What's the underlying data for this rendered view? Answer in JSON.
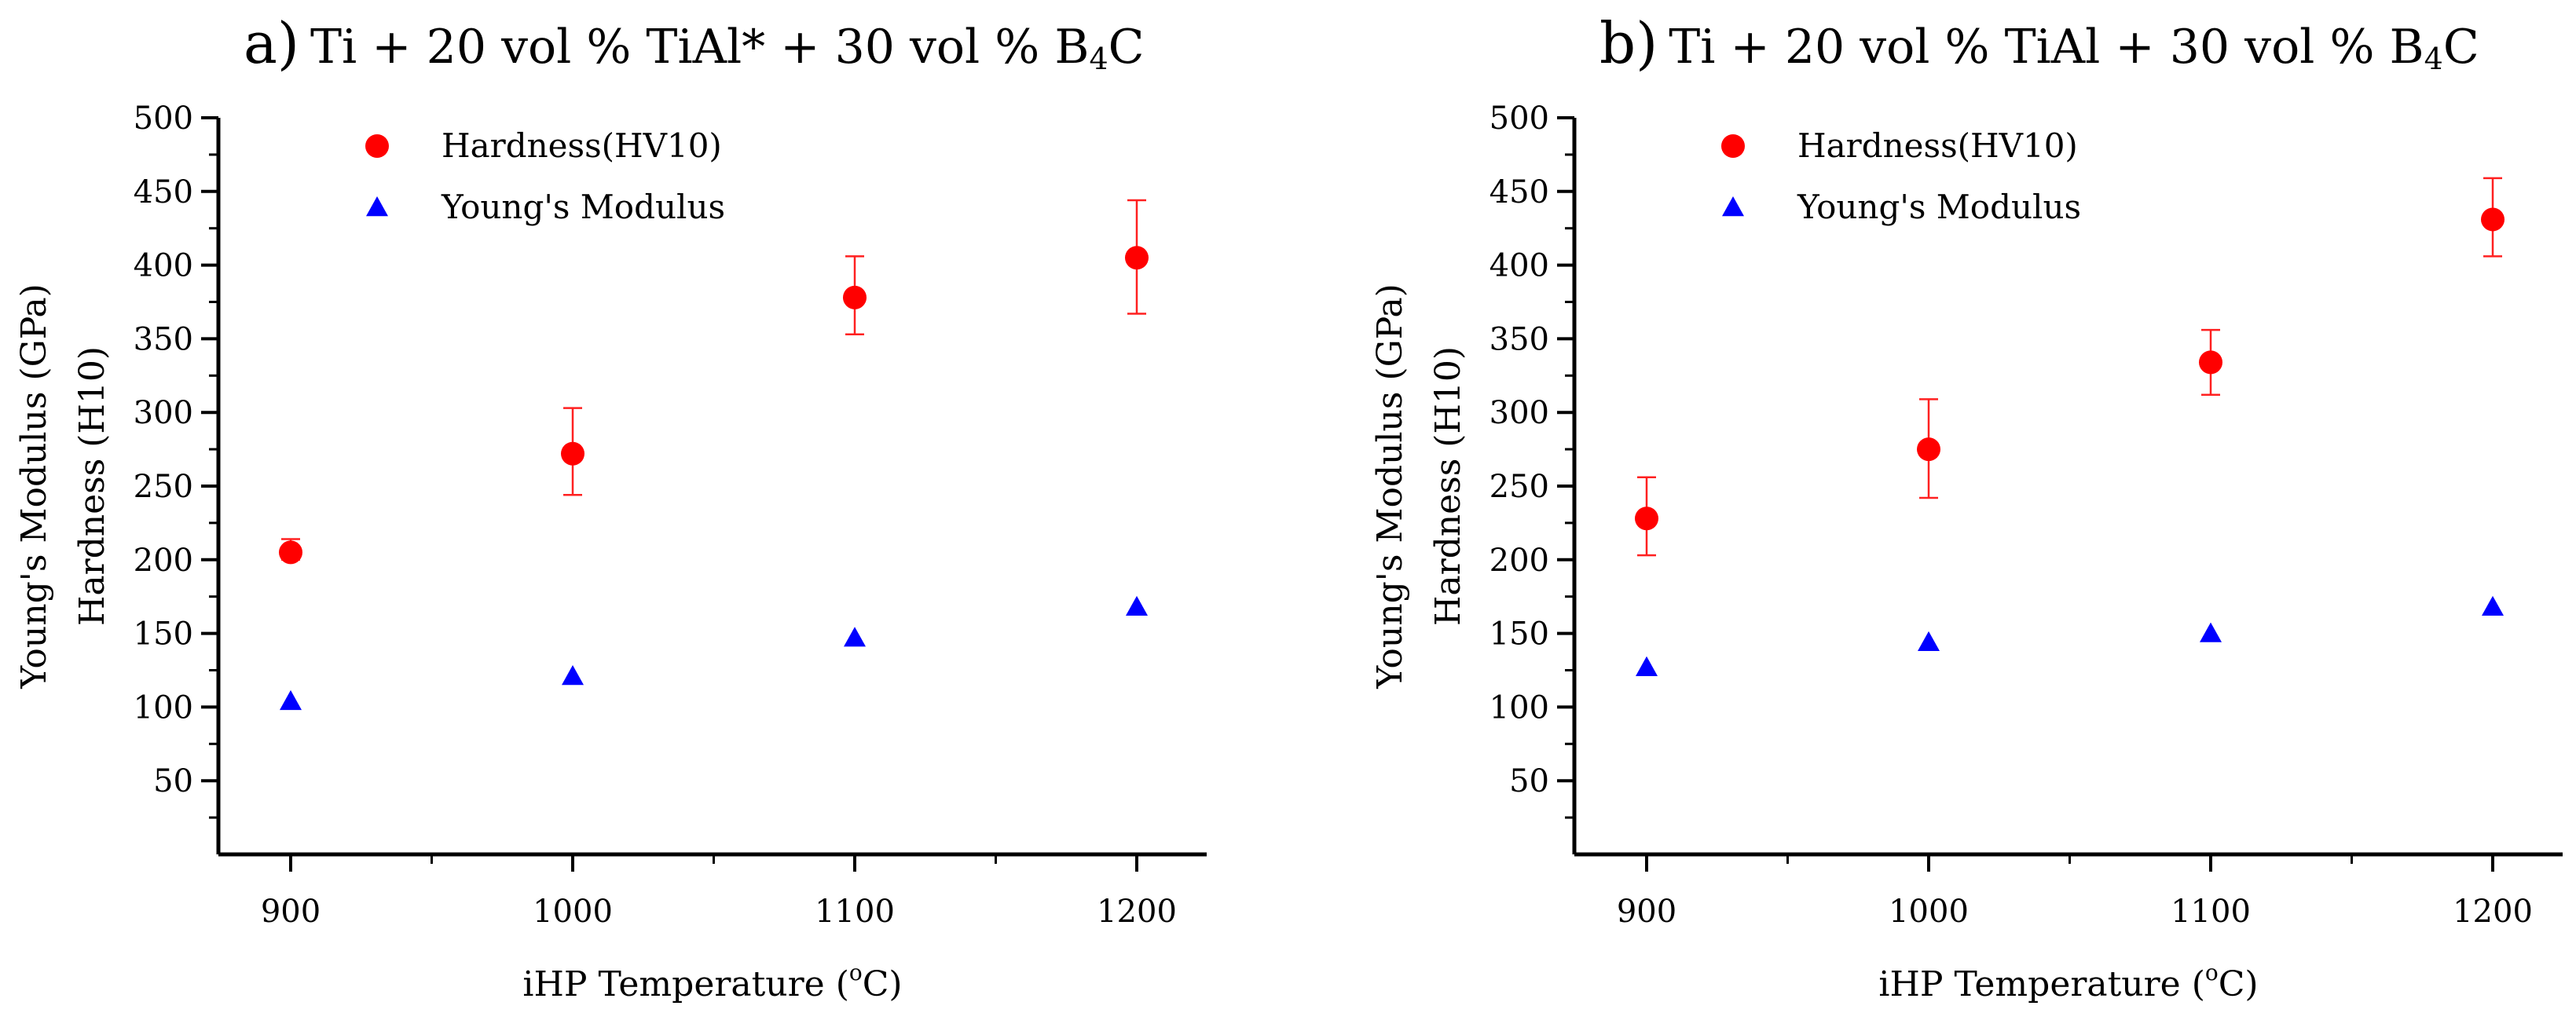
{
  "chart_data": [
    {
      "type": "scatter",
      "panel_letter": "a)",
      "title_pre": "Ti + 20 vol % TiAl* + 30 vol % B",
      "title_sub": "4",
      "title_post": "C",
      "xlabel_pre": "iHP Temperature (",
      "xlabel_sup": "o",
      "xlabel_post": "C)",
      "ylabel_outer": "Young's Modulus (GPa)",
      "ylabel_inner": "Hardness (H10)",
      "xlim": [
        875,
        1225
      ],
      "ylim": [
        0,
        500
      ],
      "x_ticks": [
        900,
        1000,
        1100,
        1200
      ],
      "y_ticks": [
        50,
        100,
        150,
        200,
        250,
        300,
        350,
        400,
        450,
        500
      ],
      "legend_position": "top-left",
      "series": [
        {
          "name": "Hardness(HV10)",
          "marker": "circle",
          "color": "#ff0000",
          "x": [
            900,
            1000,
            1100,
            1200
          ],
          "y": [
            205,
            272,
            378,
            405
          ],
          "err_low": [
            200,
            244,
            353,
            367
          ],
          "err_high": [
            214,
            303,
            406,
            444
          ]
        },
        {
          "name": "Young's Modulus",
          "marker": "triangle",
          "color": "#0000ff",
          "x": [
            900,
            1000,
            1100,
            1200
          ],
          "y": [
            104,
            121,
            147,
            168
          ]
        }
      ]
    },
    {
      "type": "scatter",
      "panel_letter": "b)",
      "title_pre": "Ti + 20 vol % TiAl + 30 vol % B",
      "title_sub": "4",
      "title_post": "C",
      "xlabel_pre": "iHP Temperature (",
      "xlabel_sup": "o",
      "xlabel_post": "C)",
      "ylabel_outer": "Young's Modulus (GPa)",
      "ylabel_inner": "Hardness (H10)",
      "xlim": [
        875,
        1225
      ],
      "ylim": [
        0,
        500
      ],
      "x_ticks": [
        900,
        1000,
        1100,
        1200
      ],
      "y_ticks": [
        50,
        100,
        150,
        200,
        250,
        300,
        350,
        400,
        450,
        500
      ],
      "legend_position": "top-left",
      "series": [
        {
          "name": "Hardness(HV10)",
          "marker": "circle",
          "color": "#ff0000",
          "x": [
            900,
            1000,
            1100,
            1200
          ],
          "y": [
            228,
            275,
            334,
            431
          ],
          "err_low": [
            203,
            242,
            312,
            406
          ],
          "err_high": [
            256,
            309,
            356,
            459
          ]
        },
        {
          "name": "Young's Modulus",
          "marker": "triangle",
          "color": "#0000ff",
          "x": [
            900,
            1000,
            1100,
            1200
          ],
          "y": [
            127,
            144,
            150,
            168
          ]
        }
      ]
    }
  ]
}
